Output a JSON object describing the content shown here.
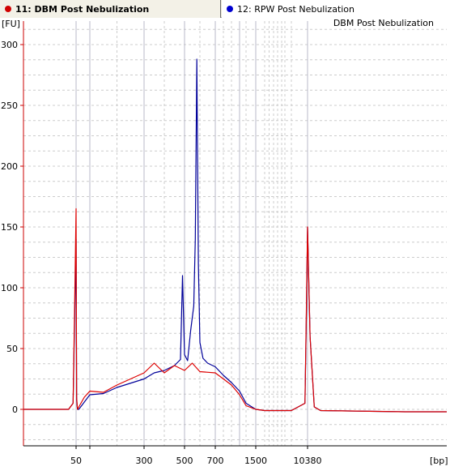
{
  "tabs": [
    {
      "label": "11: DBM Post Nebulization",
      "dot_color": "#d00000",
      "active": true
    },
    {
      "label": "12: RPW Post Nebulization",
      "dot_color": "#0000d0",
      "active": false
    }
  ],
  "colors": {
    "background": "#ffffff",
    "axis_left": "#cc0000",
    "axis_bottom": "#000000",
    "grid_solid": "#b8b8c8",
    "grid_dashed": "#cccccc",
    "series_red": "#dd0000",
    "series_blue": "#000099"
  },
  "chart_data": {
    "type": "line",
    "title": "DBM Post Nebulization",
    "ylabel": "[FU]",
    "xlabel": "[bp]",
    "ylim": [
      -30,
      320
    ],
    "y_ticks": [
      0,
      50,
      100,
      150,
      200,
      250,
      300
    ],
    "x_tick_labels": [
      "50",
      "300",
      "500",
      "700",
      "1500",
      "10380"
    ],
    "grid": true,
    "x_axis_scale": "ladder-calibrated (non-linear)",
    "series": [
      {
        "name": "DBM Post Nebulization",
        "color": "#dd0000",
        "x": [
          "15",
          "25",
          "35",
          "45",
          "48",
          "49",
          "50",
          "51",
          "52",
          "55",
          "60",
          "80",
          "100",
          "150",
          "200",
          "300",
          "350",
          "400",
          "450",
          "500",
          "550",
          "600",
          "700",
          "800",
          "900",
          "1000",
          "1200",
          "1500",
          "2000",
          "3000",
          "5000",
          "8000",
          "10000",
          "10200",
          "10380",
          "10500",
          "10700",
          "11000",
          "15000",
          "17000"
        ],
        "y": [
          0,
          0,
          0,
          0,
          5,
          80,
          165,
          90,
          10,
          0,
          2,
          10,
          15,
          14,
          20,
          30,
          38,
          30,
          36,
          32,
          38,
          31,
          30,
          25,
          20,
          12,
          3,
          0,
          -1,
          -1,
          -1,
          -1,
          5,
          80,
          150,
          60,
          2,
          -1,
          -2,
          -2
        ]
      },
      {
        "name": "RPW Post Nebulization",
        "color": "#000099",
        "x": [
          "15",
          "25",
          "35",
          "45",
          "48",
          "49",
          "50",
          "51",
          "52",
          "55",
          "60",
          "80",
          "100",
          "150",
          "200",
          "300",
          "350",
          "400",
          "450",
          "480",
          "490",
          "500",
          "520",
          "540",
          "560",
          "570",
          "580",
          "590",
          "600",
          "620",
          "650",
          "700",
          "800",
          "900",
          "1000",
          "1200",
          "1500",
          "2000",
          "3000",
          "5000",
          "8000",
          "10000",
          "10200",
          "10380",
          "10500",
          "10700",
          "11000",
          "15000",
          "17000"
        ],
        "y": [
          0,
          0,
          0,
          0,
          5,
          70,
          140,
          75,
          8,
          0,
          0,
          6,
          12,
          13,
          18,
          25,
          30,
          32,
          36,
          41,
          110,
          45,
          40,
          65,
          85,
          140,
          288,
          120,
          55,
          42,
          38,
          35,
          28,
          22,
          15,
          5,
          0,
          -1,
          -1,
          -1,
          -1,
          5,
          75,
          150,
          60,
          2,
          -1,
          -2,
          -2
        ]
      }
    ]
  }
}
